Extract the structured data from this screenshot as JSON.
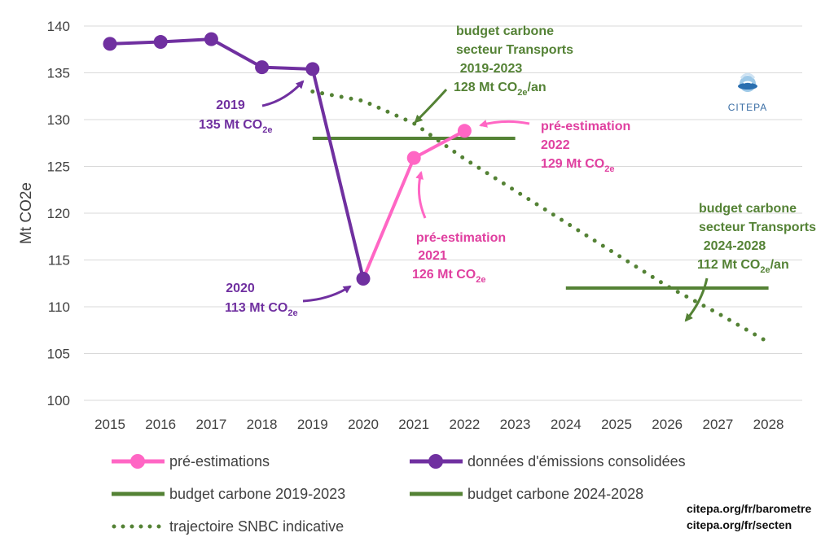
{
  "chart_data": {
    "type": "line",
    "ylabel": "Mt CO2e",
    "ylim": [
      100,
      140
    ],
    "yticks": [
      100,
      105,
      110,
      115,
      120,
      125,
      130,
      135,
      140
    ],
    "x_ticks": [
      "2015",
      "2016",
      "2017",
      "2018",
      "2019",
      "2020",
      "2021",
      "2022",
      "2023",
      "2024",
      "2025",
      "2026",
      "2027",
      "2028"
    ],
    "grid": "horizontal",
    "series": [
      {
        "name": "données d'émissions consolidées",
        "color": "#7030a0",
        "x": [
          2015,
          2016,
          2017,
          2018,
          2019,
          2020
        ],
        "y": [
          138.1,
          138.3,
          138.6,
          135.6,
          135.4,
          113.0
        ]
      },
      {
        "name": "pré-estimations",
        "color": "#ff66c4",
        "x": [
          2020,
          2021,
          2022
        ],
        "y": [
          113.0,
          125.9,
          128.8
        ]
      },
      {
        "name": "budget carbone 2019-2023",
        "color": "#548235",
        "x": [
          2019,
          2023
        ],
        "y": [
          128,
          128
        ]
      },
      {
        "name": "budget carbone 2024-2028",
        "color": "#548235",
        "x": [
          2024,
          2028
        ],
        "y": [
          112,
          112
        ]
      },
      {
        "name": "trajectoire SNBC indicative",
        "color": "#548235",
        "x": [
          2019,
          2020,
          2021,
          2022,
          2023,
          2024,
          2025,
          2026,
          2027,
          2028
        ],
        "y": [
          133.0,
          132.0,
          129.6,
          125.8,
          122.4,
          119.0,
          115.6,
          112.2,
          109.3,
          106.2
        ]
      }
    ],
    "annotations": [
      {
        "lines": [
          "2019",
          "135 Mt CO",
          "2e"
        ],
        "color": "#7030a0"
      },
      {
        "lines": [
          "2020",
          "113 Mt CO",
          "2e"
        ],
        "color": "#7030a0"
      },
      {
        "lines": [
          "pré-estimation",
          "2021",
          "126 Mt CO",
          "2e"
        ],
        "color": "#e040a0"
      },
      {
        "lines": [
          "pré-estimation",
          "2022",
          "129 Mt CO",
          "2e"
        ],
        "color": "#e040a0"
      },
      {
        "lines": [
          "budget carbone",
          "secteur Transports",
          "2019-2023",
          "128 Mt CO",
          "2e",
          "/an"
        ],
        "color": "#548235"
      },
      {
        "lines": [
          "budget carbone",
          "secteur Transports",
          "2024-2028",
          "112 Mt CO",
          "2e",
          "/an"
        ],
        "color": "#548235"
      }
    ]
  },
  "legend": [
    {
      "label": "pré-estimations",
      "style": "line-marker",
      "color": "#ff66c4"
    },
    {
      "label": "données d'émissions consolidées",
      "style": "line-marker",
      "color": "#7030a0"
    },
    {
      "label": "budget carbone 2019-2023",
      "style": "line",
      "color": "#548235"
    },
    {
      "label": "budget carbone 2024-2028",
      "style": "line",
      "color": "#548235"
    },
    {
      "label": "trajectoire SNBC indicative",
      "style": "dotted",
      "color": "#548235"
    }
  ],
  "sources": [
    "citepa.org/fr/barometre",
    "citepa.org/fr/secten"
  ],
  "logo": {
    "text": "CITEPA",
    "icon": "citepa-globe-logo"
  }
}
